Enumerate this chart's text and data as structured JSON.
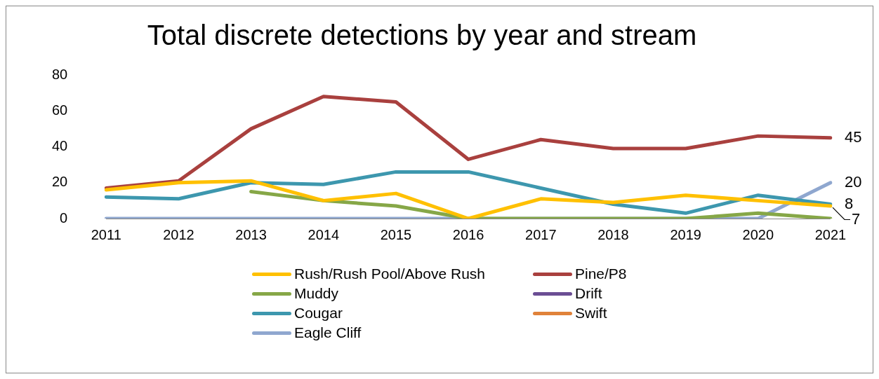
{
  "chart_data": {
    "type": "line",
    "title": "Total discrete detections by year and stream",
    "categories": [
      "2011",
      "2012",
      "2013",
      "2014",
      "2015",
      "2016",
      "2017",
      "2018",
      "2019",
      "2020",
      "2021"
    ],
    "series": [
      {
        "name": "Rush/Rush Pool/Above Rush",
        "color": "#ffc000",
        "values": [
          16,
          20,
          21,
          10,
          14,
          0,
          11,
          9,
          13,
          10,
          7
        ],
        "value_labels": [
          null,
          null,
          null,
          null,
          null,
          null,
          null,
          null,
          null,
          null,
          "7"
        ]
      },
      {
        "name": "Pine/P8",
        "color": "#a9403e",
        "values": [
          17,
          21,
          50,
          68,
          65,
          33,
          44,
          39,
          39,
          46,
          45
        ],
        "value_labels": [
          null,
          null,
          null,
          null,
          null,
          null,
          null,
          null,
          null,
          null,
          "45"
        ]
      },
      {
        "name": "Muddy",
        "color": "#86a747",
        "values": [
          null,
          null,
          15,
          10,
          7,
          0,
          0,
          0,
          0,
          3,
          0
        ]
      },
      {
        "name": "Drift",
        "color": "#6b4e94",
        "values": [
          null,
          null,
          null,
          null,
          null,
          null,
          null,
          null,
          null,
          null,
          null
        ]
      },
      {
        "name": "Cougar",
        "color": "#3d97ae",
        "values": [
          12,
          11,
          20,
          19,
          26,
          26,
          17,
          8,
          3,
          13,
          8
        ],
        "value_labels": [
          null,
          null,
          null,
          null,
          null,
          null,
          null,
          null,
          null,
          null,
          "8"
        ]
      },
      {
        "name": "Swift",
        "color": "#e0823a",
        "values": [
          null,
          null,
          null,
          null,
          null,
          null,
          null,
          null,
          null,
          null,
          null
        ]
      },
      {
        "name": "Eagle Cliff",
        "color": "#8fa7cf",
        "values": [
          0,
          0,
          0,
          0,
          0,
          0,
          0,
          0,
          0,
          0,
          20
        ],
        "value_labels": [
          null,
          null,
          null,
          null,
          null,
          null,
          null,
          null,
          null,
          null,
          "20"
        ]
      }
    ],
    "ylim": [
      0,
      80
    ],
    "yticks": [
      0,
      20,
      40,
      60,
      80
    ],
    "grid": false,
    "legend": "bottom",
    "marker": "none",
    "line_style": "solid"
  }
}
